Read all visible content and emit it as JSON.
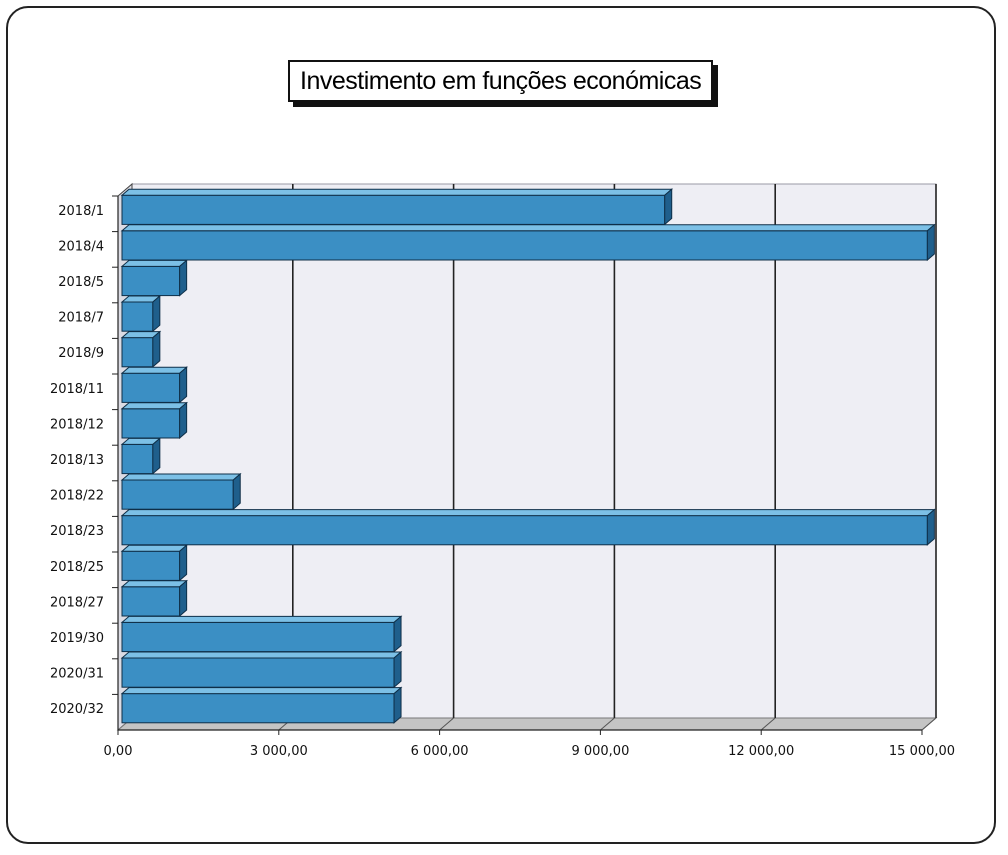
{
  "chart_data": {
    "type": "bar",
    "orientation": "horizontal",
    "title": "Investimento em funções económicas",
    "categories": [
      "2018/1",
      "2018/4",
      "2018/5",
      "2018/7",
      "2018/9",
      "2018/11",
      "2018/12",
      "2018/13",
      "2018/22",
      "2018/23",
      "2018/25",
      "2018/27",
      "2019/30",
      "2020/31",
      "2020/32"
    ],
    "values": [
      10200,
      15100,
      1150,
      650,
      650,
      1150,
      1150,
      650,
      2150,
      15100,
      1150,
      1150,
      5150,
      5150,
      5150
    ],
    "xlim": [
      0,
      15000
    ],
    "x_ticks": [
      "0,00",
      "3 000,00",
      "6 000,00",
      "9 000,00",
      "12 000,00",
      "15 000,00"
    ],
    "grid": true,
    "colors": {
      "bar": "#3b8fc4",
      "bar_top": "#7cc0e6",
      "bar_side": "#1f5f8c",
      "wall": "#eeeef4",
      "floor": "#c4c4c4"
    }
  }
}
